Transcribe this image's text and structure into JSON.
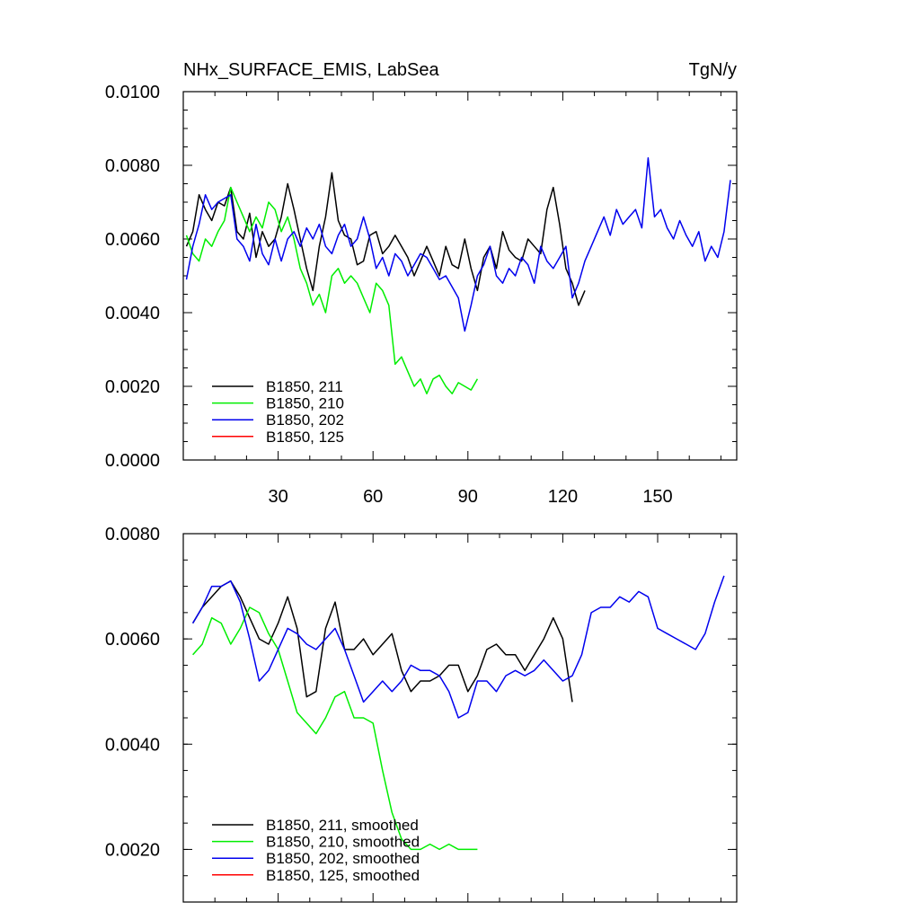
{
  "chart_data": [
    {
      "type": "line",
      "title_left": "NHx_SURFACE_EMIS, LabSea",
      "title_right": "TgN/y",
      "xlabel": "",
      "ylabel": "",
      "xlim": [
        0,
        175
      ],
      "ylim": [
        0.0,
        0.01
      ],
      "x_tick_labels": [
        {
          "value": 30,
          "label": "30"
        },
        {
          "value": 60,
          "label": "60"
        },
        {
          "value": 90,
          "label": "90"
        },
        {
          "value": 120,
          "label": "120"
        },
        {
          "value": 150,
          "label": "150"
        }
      ],
      "y_tick_labels": [
        {
          "value": 0.0,
          "label": "0.0000"
        },
        {
          "value": 0.002,
          "label": "0.0020"
        },
        {
          "value": 0.004,
          "label": "0.0040"
        },
        {
          "value": 0.006,
          "label": "0.0060"
        },
        {
          "value": 0.008,
          "label": "0.0080"
        },
        {
          "value": 0.01,
          "label": "0.0100"
        }
      ],
      "legend_position": "bottom-left",
      "legend": [
        {
          "label": "B1850, 211",
          "color": "#000000"
        },
        {
          "label": "B1850, 210",
          "color": "#00ee00"
        },
        {
          "label": "B1850, 202",
          "color": "#0000ee"
        },
        {
          "label": "B1850, 125",
          "color": "#ff0000"
        }
      ],
      "series": [
        {
          "name": "B1850, 211",
          "color": "#000000",
          "x": [
            1,
            3,
            5,
            7,
            9,
            11,
            13,
            15,
            17,
            19,
            21,
            23,
            25,
            27,
            29,
            31,
            33,
            35,
            37,
            39,
            41,
            43,
            45,
            47,
            49,
            51,
            53,
            55,
            57,
            59,
            61,
            63,
            65,
            67,
            69,
            71,
            73,
            75,
            77,
            79,
            81,
            83,
            85,
            87,
            89,
            91,
            93,
            95,
            97,
            99,
            101,
            103,
            105,
            107,
            109,
            111,
            113,
            115,
            117,
            119,
            121,
            123,
            125,
            127
          ],
          "y": [
            0.0058,
            0.0062,
            0.0072,
            0.0068,
            0.0065,
            0.007,
            0.0069,
            0.0074,
            0.0062,
            0.006,
            0.0067,
            0.0055,
            0.0062,
            0.0058,
            0.006,
            0.0066,
            0.0075,
            0.0068,
            0.006,
            0.0052,
            0.0046,
            0.0058,
            0.0066,
            0.0078,
            0.0065,
            0.0061,
            0.006,
            0.0053,
            0.0054,
            0.0061,
            0.0062,
            0.0056,
            0.0058,
            0.0061,
            0.0058,
            0.0055,
            0.005,
            0.0054,
            0.0058,
            0.0054,
            0.005,
            0.0058,
            0.0053,
            0.0052,
            0.006,
            0.0052,
            0.0046,
            0.0055,
            0.0058,
            0.0052,
            0.0062,
            0.0057,
            0.0055,
            0.0054,
            0.006,
            0.0058,
            0.0056,
            0.0068,
            0.0074,
            0.0064,
            0.0052,
            0.0048,
            0.0042,
            0.0046
          ]
        },
        {
          "name": "B1850, 210",
          "color": "#00ee00",
          "x": [
            1,
            3,
            5,
            7,
            9,
            11,
            13,
            15,
            17,
            19,
            21,
            23,
            25,
            27,
            29,
            31,
            33,
            35,
            37,
            39,
            41,
            43,
            45,
            47,
            49,
            51,
            53,
            55,
            57,
            59,
            61,
            63,
            65,
            67,
            69,
            71,
            73,
            75,
            77,
            79,
            81,
            83,
            85,
            87,
            89,
            91,
            93
          ],
          "y": [
            0.0061,
            0.0056,
            0.0054,
            0.006,
            0.0058,
            0.0062,
            0.0065,
            0.0074,
            0.007,
            0.0066,
            0.0062,
            0.0066,
            0.0063,
            0.007,
            0.0068,
            0.0062,
            0.0066,
            0.006,
            0.0052,
            0.0048,
            0.0042,
            0.0045,
            0.004,
            0.005,
            0.0052,
            0.0048,
            0.005,
            0.0048,
            0.0044,
            0.004,
            0.0048,
            0.0046,
            0.0042,
            0.0026,
            0.0028,
            0.0024,
            0.002,
            0.0022,
            0.0018,
            0.0022,
            0.0023,
            0.002,
            0.0018,
            0.0021,
            0.002,
            0.0019,
            0.0022
          ]
        },
        {
          "name": "B1850, 202",
          "color": "#0000ee",
          "x": [
            1,
            3,
            5,
            7,
            9,
            11,
            13,
            15,
            17,
            19,
            21,
            23,
            25,
            27,
            29,
            31,
            33,
            35,
            37,
            39,
            41,
            43,
            45,
            47,
            49,
            51,
            53,
            55,
            57,
            59,
            61,
            63,
            65,
            67,
            69,
            71,
            73,
            75,
            77,
            79,
            81,
            83,
            85,
            87,
            89,
            91,
            93,
            95,
            97,
            99,
            101,
            103,
            105,
            107,
            109,
            111,
            113,
            115,
            117,
            119,
            121,
            123,
            125,
            127,
            129,
            131,
            133,
            135,
            137,
            139,
            141,
            143,
            145,
            147,
            149,
            151,
            153,
            155,
            157,
            159,
            161,
            163,
            165,
            167,
            169,
            171,
            173
          ],
          "y": [
            0.0049,
            0.0058,
            0.0064,
            0.0072,
            0.0068,
            0.007,
            0.0071,
            0.0072,
            0.006,
            0.0058,
            0.0054,
            0.0064,
            0.0056,
            0.0053,
            0.006,
            0.0054,
            0.006,
            0.0062,
            0.0058,
            0.0063,
            0.006,
            0.0064,
            0.0058,
            0.0056,
            0.0061,
            0.0064,
            0.0058,
            0.006,
            0.0066,
            0.006,
            0.0052,
            0.0055,
            0.005,
            0.0056,
            0.0054,
            0.005,
            0.0053,
            0.0056,
            0.0055,
            0.0052,
            0.0049,
            0.005,
            0.0047,
            0.0044,
            0.0035,
            0.0042,
            0.005,
            0.0053,
            0.0058,
            0.005,
            0.0048,
            0.0052,
            0.005,
            0.0055,
            0.0053,
            0.0048,
            0.0058,
            0.0054,
            0.0052,
            0.0055,
            0.0058,
            0.0044,
            0.0048,
            0.0054,
            0.0058,
            0.0062,
            0.0066,
            0.0061,
            0.0068,
            0.0064,
            0.0066,
            0.0068,
            0.0063,
            0.0082,
            0.0066,
            0.0068,
            0.0063,
            0.006,
            0.0065,
            0.0061,
            0.0058,
            0.0062,
            0.0054,
            0.0058,
            0.0055,
            0.0062,
            0.0076
          ]
        },
        {
          "name": "B1850, 125",
          "color": "#ff0000",
          "x": [],
          "y": []
        }
      ]
    },
    {
      "type": "line",
      "title_left": "",
      "title_right": "",
      "xlabel": "",
      "ylabel": "",
      "xlim": [
        0,
        175
      ],
      "ylim": [
        0.001,
        0.008
      ],
      "x_tick_labels": [],
      "y_tick_labels": [
        {
          "value": 0.002,
          "label": "0.0020"
        },
        {
          "value": 0.004,
          "label": "0.0040"
        },
        {
          "value": 0.006,
          "label": "0.0060"
        },
        {
          "value": 0.008,
          "label": "0.0080"
        }
      ],
      "legend_position": "bottom-left",
      "legend": [
        {
          "label": "B1850, 211, smoothed",
          "color": "#000000"
        },
        {
          "label": "B1850, 210, smoothed",
          "color": "#00ee00"
        },
        {
          "label": "B1850, 202, smoothed",
          "color": "#0000ee"
        },
        {
          "label": "B1850, 125, smoothed",
          "color": "#ff0000"
        }
      ],
      "series": [
        {
          "name": "B1850, 211, smoothed",
          "color": "#000000",
          "x": [
            3,
            6,
            9,
            12,
            15,
            18,
            21,
            24,
            27,
            30,
            33,
            36,
            39,
            42,
            45,
            48,
            51,
            54,
            57,
            60,
            63,
            66,
            69,
            72,
            75,
            78,
            81,
            84,
            87,
            90,
            93,
            96,
            99,
            102,
            105,
            108,
            111,
            114,
            117,
            120,
            123
          ],
          "y": [
            0.0063,
            0.0066,
            0.0068,
            0.007,
            0.0071,
            0.0068,
            0.0064,
            0.006,
            0.0059,
            0.0063,
            0.0068,
            0.0062,
            0.0049,
            0.005,
            0.0062,
            0.0067,
            0.0058,
            0.0058,
            0.006,
            0.0057,
            0.0059,
            0.0061,
            0.0054,
            0.005,
            0.0052,
            0.0052,
            0.0053,
            0.0055,
            0.0055,
            0.005,
            0.0053,
            0.0058,
            0.0059,
            0.0057,
            0.0057,
            0.0054,
            0.0057,
            0.006,
            0.0064,
            0.006,
            0.0048
          ]
        },
        {
          "name": "B1850, 210, smoothed",
          "color": "#00ee00",
          "x": [
            3,
            6,
            9,
            12,
            15,
            18,
            21,
            24,
            27,
            30,
            33,
            36,
            39,
            42,
            45,
            48,
            51,
            54,
            57,
            60,
            63,
            66,
            69,
            72,
            75,
            78,
            81,
            84,
            87,
            90,
            93
          ],
          "y": [
            0.0057,
            0.0059,
            0.0064,
            0.0063,
            0.0059,
            0.0062,
            0.0066,
            0.0065,
            0.0061,
            0.0058,
            0.0052,
            0.0046,
            0.0044,
            0.0042,
            0.0045,
            0.0049,
            0.005,
            0.0045,
            0.0045,
            0.0044,
            0.0035,
            0.0027,
            0.0022,
            0.002,
            0.002,
            0.0021,
            0.002,
            0.0021,
            0.002,
            0.002,
            0.002
          ]
        },
        {
          "name": "B1850, 202, smoothed",
          "color": "#0000ee",
          "x": [
            3,
            6,
            9,
            12,
            15,
            18,
            21,
            24,
            27,
            30,
            33,
            36,
            39,
            42,
            45,
            48,
            51,
            54,
            57,
            60,
            63,
            66,
            69,
            72,
            75,
            78,
            81,
            84,
            87,
            90,
            93,
            96,
            99,
            102,
            105,
            108,
            111,
            114,
            117,
            120,
            123,
            126,
            129,
            132,
            135,
            138,
            141,
            144,
            147,
            150,
            153,
            156,
            159,
            162,
            165,
            168,
            171
          ],
          "y": [
            0.0063,
            0.0066,
            0.007,
            0.007,
            0.0071,
            0.0067,
            0.006,
            0.0052,
            0.0054,
            0.0058,
            0.0062,
            0.0061,
            0.0059,
            0.0058,
            0.006,
            0.0062,
            0.0058,
            0.0053,
            0.0048,
            0.005,
            0.0052,
            0.005,
            0.0052,
            0.0055,
            0.0054,
            0.0054,
            0.0053,
            0.005,
            0.0045,
            0.0046,
            0.0052,
            0.0052,
            0.005,
            0.0053,
            0.0054,
            0.0053,
            0.0054,
            0.0056,
            0.0054,
            0.0052,
            0.0053,
            0.0057,
            0.0065,
            0.0066,
            0.0066,
            0.0068,
            0.0067,
            0.0069,
            0.0068,
            0.0062,
            0.0061,
            0.006,
            0.0059,
            0.0058,
            0.0061,
            0.0067,
            0.0072
          ]
        },
        {
          "name": "B1850, 125, smoothed",
          "color": "#ff0000",
          "x": [],
          "y": []
        }
      ]
    }
  ]
}
